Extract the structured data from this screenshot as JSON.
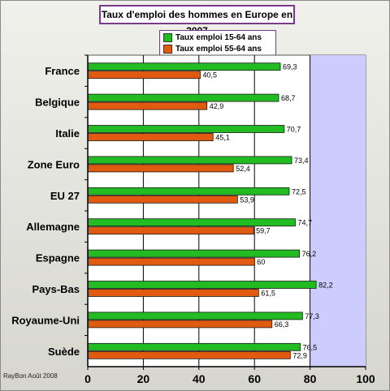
{
  "chart_data": {
    "type": "bar",
    "orientation": "horizontal",
    "title": "Taux d'emploi des hommes en Europe en 2007",
    "categories": [
      "France",
      "Belgique",
      "Italie",
      "Zone Euro",
      "EU 27",
      "Allemagne",
      "Espagne",
      "Pays-Bas",
      "Royaume-Uni",
      "Suède"
    ],
    "series": [
      {
        "name": "Taux emploi 15-64 ans",
        "color": "#22bb22",
        "values": [
          69.3,
          68.7,
          70.7,
          73.4,
          72.5,
          74.7,
          76.2,
          82.2,
          77.3,
          76.5
        ],
        "labels": [
          "69,3",
          "68,7",
          "70,7",
          "73,4",
          "72,5",
          "74,7",
          "76,2",
          "82,2",
          "77,3",
          "76,5"
        ]
      },
      {
        "name": "Taux emploi 55-64 ans",
        "color": "#e05a10",
        "values": [
          40.5,
          42.9,
          45.1,
          52.4,
          53.9,
          59.7,
          60,
          61.5,
          66.3,
          72.9
        ],
        "labels": [
          "40,5",
          "42,9",
          "45,1",
          "52,4",
          "53,9",
          "59,7",
          "60",
          "61,5",
          "66,3",
          "72,9"
        ]
      }
    ],
    "xlim": [
      0,
      100
    ],
    "xticks": [
      "0",
      "20",
      "40",
      "60",
      "80",
      "100"
    ],
    "highlight_band": [
      80,
      100
    ],
    "grid": true,
    "legend_position": "top",
    "plot_colors": {
      "background": "#ffffff",
      "band": "#ccccff",
      "grid": "#000000"
    }
  },
  "credit": "RayBon Août 2008"
}
